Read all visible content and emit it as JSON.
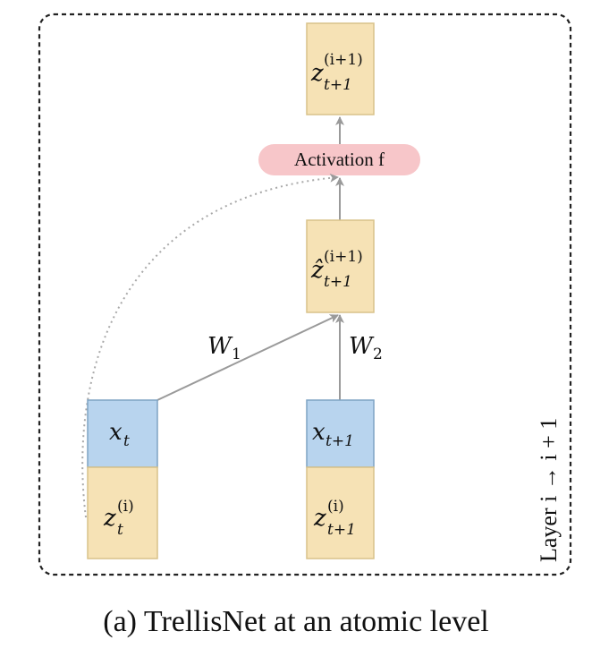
{
  "diagram": {
    "layer_label": "Layer i → i + 1",
    "activation_label": "Activation f",
    "weights": {
      "w1": "W",
      "w1_sub": "1",
      "w2": "W",
      "w2_sub": "2"
    },
    "nodes": {
      "z_next": {
        "base": "z",
        "sub": "t+1",
        "sup": "(i+1)"
      },
      "zhat_next": {
        "base": "ẑ",
        "sub": "t+1",
        "sup": "(i+1)"
      },
      "x_t": {
        "base": "x",
        "sub": "t"
      },
      "x_t1": {
        "base": "x",
        "sub": "t+1"
      },
      "z_t": {
        "base": "z",
        "sub": "t",
        "sup": "(i)"
      },
      "z_t1": {
        "base": "z",
        "sub": "t+1",
        "sup": "(i)"
      }
    },
    "colors": {
      "hidden_fill": "#f6e2b5",
      "hidden_stroke": "#d8c28a",
      "input_fill": "#b8d4ee",
      "input_stroke": "#7fa3c4",
      "activation_fill": "#f7c6c9",
      "arrow": "#9a9a9a",
      "border": "#222222"
    }
  },
  "caption": "(a) TrellisNet at an atomic level"
}
